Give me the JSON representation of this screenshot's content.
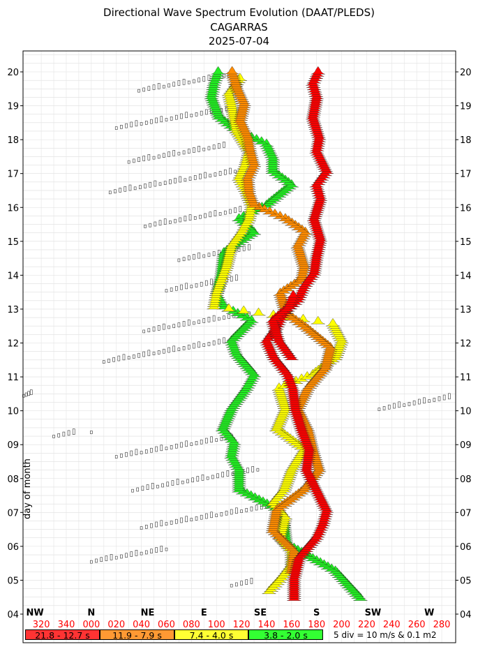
{
  "title_lines": [
    "Directional Wave Spectrum Evolution (DAAT/PLEDS)",
    "CAGARRAS",
    "2025-07-04"
  ],
  "chart_data": {
    "type": "ridgeline",
    "ylabel": "day of month",
    "y_ticks": [
      "04",
      "05",
      "06",
      "07",
      "08",
      "09",
      "10",
      "11",
      "12",
      "13",
      "14",
      "15",
      "16",
      "17",
      "18",
      "19",
      "20"
    ],
    "ylim": [
      4,
      20.6
    ],
    "x_degree_ticks": [
      "320",
      "340",
      "000",
      "020",
      "040",
      "060",
      "080",
      "100",
      "120",
      "140",
      "160",
      "180",
      "200",
      "220",
      "240",
      "260",
      "280"
    ],
    "x_degree_values": [
      320,
      340,
      360,
      380,
      400,
      420,
      440,
      460,
      480,
      500,
      520,
      540,
      560,
      580,
      600,
      620,
      640
    ],
    "xlim_degrees": [
      306,
      650
    ],
    "compass_labels": [
      {
        "label": "NW",
        "deg": 315
      },
      {
        "label": "N",
        "deg": 360
      },
      {
        "label": "NE",
        "deg": 405
      },
      {
        "label": "E",
        "deg": 450
      },
      {
        "label": "SE",
        "deg": 495
      },
      {
        "label": "S",
        "deg": 540
      },
      {
        "label": "SW",
        "deg": 585
      },
      {
        "label": "W",
        "deg": 630
      }
    ],
    "colors": {
      "period_1": "#ff0000",
      "period_2": "#ff8c00",
      "period_3": "#ffff00",
      "period_4": "#00ee00",
      "tick_label": "#ff0000"
    },
    "legend": [
      {
        "label": "21.8 - 12.7 s",
        "color": "#ff3333"
      },
      {
        "label": "11.9 - 7.9 s",
        "color": "#ff9933"
      },
      {
        "label": "7.4 - 4.0 s",
        "color": "#ffff33"
      },
      {
        "label": "3.8 - 2.0 s",
        "color": "#33ff33"
      }
    ],
    "legend_note": "5 div = 10 m/s & 0.1 m2",
    "series": [
      {
        "band": "period_1",
        "tracks": [
          [
            [
              4.4,
              522
            ],
            [
              5.0,
              522
            ],
            [
              5.6,
              526
            ],
            [
              6.2,
              540
            ],
            [
              6.6,
              545
            ],
            [
              7.0,
              548
            ],
            [
              7.6,
              540
            ],
            [
              8.2,
              532
            ],
            [
              8.8,
              534
            ],
            [
              9.4,
              528
            ],
            [
              10.0,
              523
            ],
            [
              10.6,
              521
            ],
            [
              11.0,
              517
            ],
            [
              11.5,
              506
            ],
            [
              12.0,
              500
            ],
            [
              12.4,
              508
            ],
            [
              12.8,
              513
            ],
            [
              13.2,
              525
            ],
            [
              13.6,
              530
            ],
            [
              14.0,
              538
            ],
            [
              14.5,
              540
            ],
            [
              15.0,
              543
            ],
            [
              15.6,
              538
            ],
            [
              16.2,
              543
            ],
            [
              16.6,
              540
            ],
            [
              17.0,
              548
            ],
            [
              17.6,
              540
            ],
            [
              18.0,
              542
            ],
            [
              18.6,
              537
            ],
            [
              19.2,
              540
            ],
            [
              19.6,
              537
            ],
            [
              20.0,
              542
            ]
          ],
          [
            [
              11.5,
              520
            ],
            [
              12.0,
              510
            ],
            [
              12.6,
              505
            ],
            [
              13.0,
              518
            ],
            [
              13.4,
              522
            ]
          ]
        ]
      },
      {
        "band": "period_2",
        "tracks": [
          [
            [
              5.2,
              520
            ],
            [
              5.8,
              522
            ],
            [
              6.4,
              505
            ],
            [
              7.0,
              508
            ],
            [
              7.6,
              530
            ],
            [
              8.2,
              542
            ],
            [
              8.8,
              537
            ],
            [
              9.4,
              533
            ],
            [
              10.0,
              525
            ],
            [
              10.6,
              533
            ],
            [
              11.2,
              547
            ],
            [
              11.8,
              551
            ],
            [
              12.4,
              531
            ],
            [
              12.8,
              516
            ],
            [
              13.4,
              511
            ],
            [
              13.8,
              528
            ],
            [
              14.2,
              530
            ],
            [
              14.8,
              525
            ],
            [
              15.2,
              531
            ],
            [
              15.6,
              515
            ],
            [
              16.0,
              490
            ],
            [
              16.4,
              486
            ],
            [
              16.8,
              485
            ],
            [
              17.2,
              490
            ],
            [
              17.6,
              487
            ],
            [
              18.0,
              485
            ],
            [
              18.5,
              479
            ],
            [
              19.0,
              482
            ],
            [
              19.5,
              476
            ],
            [
              20.0,
              472
            ]
          ]
        ]
      },
      {
        "band": "period_3",
        "tracks": [
          [
            [
              4.6,
              502
            ],
            [
              5.0,
              512
            ],
            [
              5.4,
              520
            ],
            [
              5.8,
              520
            ],
            [
              6.2,
              511
            ],
            [
              6.8,
              515
            ],
            [
              7.2,
              505
            ],
            [
              7.6,
              514
            ],
            [
              8.2,
              520
            ],
            [
              8.8,
              530
            ],
            [
              9.4,
              508
            ],
            [
              10.0,
              515
            ],
            [
              10.6,
              510
            ],
            [
              11.0,
              537
            ],
            [
              11.5,
              555
            ],
            [
              12.0,
              560
            ],
            [
              12.5,
              553
            ],
            [
              13.0,
              458
            ],
            [
              13.4,
              460
            ],
            [
              13.8,
              464
            ],
            [
              14.2,
              468
            ],
            [
              14.8,
              472
            ],
            [
              15.2,
              480
            ],
            [
              15.6,
              486
            ],
            [
              16.0,
              488
            ],
            [
              16.4,
              484
            ],
            [
              16.8,
              478
            ],
            [
              17.2,
              483
            ],
            [
              17.6,
              486
            ],
            [
              18.2,
              476
            ],
            [
              18.8,
              473
            ],
            [
              19.3,
              470
            ],
            [
              19.8,
              480
            ]
          ]
        ]
      },
      {
        "band": "period_4",
        "tracks": [
          [
            [
              4.4,
              575
            ],
            [
              5.2,
              555
            ],
            [
              6.0,
              516
            ],
            [
              6.6,
              514
            ],
            [
              7.0,
              510
            ],
            [
              7.6,
              478
            ],
            [
              8.2,
              478
            ],
            [
              8.6,
              472
            ],
            [
              9.0,
              474
            ],
            [
              9.4,
              465
            ],
            [
              10.0,
              472
            ],
            [
              10.6,
              484
            ],
            [
              11.0,
              490
            ],
            [
              11.6,
              476
            ],
            [
              12.0,
              472
            ],
            [
              12.6,
              488
            ],
            [
              13.0,
              466
            ],
            [
              13.4,
              460
            ],
            [
              14.0,
              464
            ],
            [
              14.6,
              466
            ],
            [
              15.2,
              490
            ],
            [
              15.6,
              478
            ],
            [
              16.0,
              500
            ],
            [
              16.6,
              520
            ],
            [
              17.0,
              505
            ],
            [
              17.4,
              505
            ],
            [
              17.8,
              500
            ],
            [
              18.2,
              476
            ],
            [
              18.6,
              462
            ],
            [
              19.2,
              456
            ],
            [
              19.6,
              458
            ],
            [
              20.0,
              462
            ]
          ]
        ]
      }
    ],
    "background_traces": [
      {
        "day": 4.8,
        "x": [
          472,
          476,
          480,
          484,
          488
        ],
        "type": "boxes"
      },
      {
        "day": 5.5,
        "x": [
          360,
          364,
          368,
          372,
          376,
          380,
          384,
          388,
          392,
          396,
          400,
          404,
          408,
          412,
          416,
          420
        ],
        "type": "boxes"
      },
      {
        "day": 6.5,
        "x": [
          400,
          404,
          408,
          412,
          416,
          420,
          424,
          428,
          432,
          436,
          440,
          444,
          448,
          452,
          456,
          460,
          464,
          468,
          472,
          476,
          480,
          484,
          488,
          492,
          496,
          500
        ],
        "type": "boxes"
      },
      {
        "day": 7.6,
        "x": [
          393,
          397,
          401,
          405,
          409,
          413,
          417,
          421,
          425,
          429,
          433,
          437,
          441,
          445,
          449,
          453,
          457,
          461,
          465,
          469,
          473,
          477,
          481,
          485,
          489,
          493
        ],
        "type": "boxes"
      },
      {
        "day": 8.6,
        "x": [
          380,
          384,
          388,
          392,
          396,
          400,
          404,
          408,
          412,
          416,
          420,
          424,
          428,
          432,
          436,
          440,
          444,
          448,
          452,
          456,
          460,
          464,
          468,
          472
        ],
        "type": "boxes"
      },
      {
        "day": 9.2,
        "x": [
          330,
          334,
          338,
          342,
          346,
          360
        ],
        "type": "boxes"
      },
      {
        "day": 10.4,
        "x": [
          306,
          308,
          310,
          312
        ],
        "type": "boxes"
      },
      {
        "day": 10.0,
        "x": [
          590,
          594,
          598,
          602,
          606,
          610,
          614,
          618,
          622,
          626,
          630,
          634,
          638,
          642,
          646
        ],
        "type": "boxes"
      },
      {
        "day": 11.4,
        "x": [
          370,
          374,
          378,
          382,
          386,
          390,
          394,
          398,
          402,
          406,
          410,
          414,
          418,
          422,
          426,
          430,
          434,
          438,
          442,
          446,
          450,
          454,
          458,
          462,
          466,
          470,
          474
        ],
        "type": "boxes"
      },
      {
        "day": 12.3,
        "x": [
          402,
          406,
          410,
          414,
          418,
          422,
          426,
          430,
          434,
          438,
          442,
          446,
          450,
          454,
          458,
          462,
          466,
          470,
          474,
          478,
          482,
          486
        ],
        "type": "boxes"
      },
      {
        "day": 13.5,
        "x": [
          420,
          424,
          428,
          432,
          436,
          440,
          444,
          448,
          452,
          456,
          460,
          464,
          468,
          472,
          476
        ],
        "type": "boxes"
      },
      {
        "day": 14.4,
        "x": [
          430,
          434,
          438,
          442,
          446,
          450,
          454,
          458,
          462,
          466,
          470,
          474,
          478,
          482,
          486
        ],
        "type": "boxes"
      },
      {
        "day": 15.4,
        "x": [
          403,
          407,
          411,
          415,
          419,
          423,
          427,
          431,
          435,
          439,
          443,
          447,
          451,
          455,
          459,
          463,
          467,
          471,
          475,
          479
        ],
        "type": "boxes"
      },
      {
        "day": 16.4,
        "x": [
          375,
          379,
          383,
          387,
          391,
          395,
          399,
          403,
          407,
          411,
          415,
          419,
          423,
          427,
          431,
          435,
          439,
          443,
          447,
          451,
          455,
          459,
          463,
          467,
          471,
          475,
          479
        ],
        "type": "boxes"
      },
      {
        "day": 17.3,
        "x": [
          390,
          394,
          398,
          402,
          406,
          410,
          414,
          418,
          422,
          426,
          430,
          434,
          438,
          442,
          446,
          450,
          454,
          458,
          462,
          466
        ],
        "type": "boxes"
      },
      {
        "day": 18.3,
        "x": [
          380,
          384,
          388,
          392,
          396,
          400,
          404,
          408,
          412,
          416,
          420,
          424,
          428,
          432,
          436,
          440,
          444,
          448,
          452,
          456,
          460,
          464,
          468
        ],
        "type": "boxes"
      },
      {
        "day": 19.4,
        "x": [
          398,
          402,
          406,
          410,
          414,
          418,
          422,
          426,
          430,
          434,
          438,
          442,
          446,
          450,
          454,
          458,
          462,
          466,
          470
        ],
        "type": "boxes"
      }
    ]
  }
}
